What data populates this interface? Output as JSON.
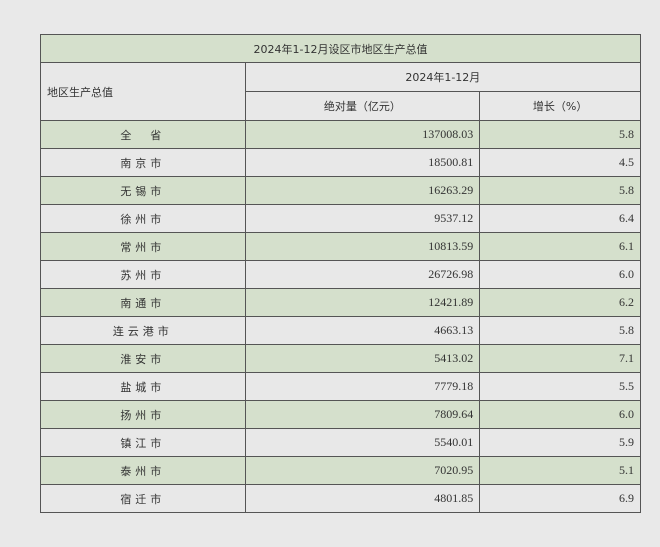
{
  "title": "2024年1-12月设区市地区生产总值",
  "header": {
    "row_label": "地区生产总值",
    "period": "2024年1-12月",
    "col_abs": "绝对量（亿元）",
    "col_growth": "增长（%）"
  },
  "rows": [
    {
      "name": "全　省",
      "value": "137008.03",
      "growth": "5.8"
    },
    {
      "name": "南京市",
      "value": "18500.81",
      "growth": "4.5"
    },
    {
      "name": "无锡市",
      "value": "16263.29",
      "growth": "5.8"
    },
    {
      "name": "徐州市",
      "value": "9537.12",
      "growth": "6.4"
    },
    {
      "name": "常州市",
      "value": "10813.59",
      "growth": "6.1"
    },
    {
      "name": "苏州市",
      "value": "26726.98",
      "growth": "6.0"
    },
    {
      "name": "南通市",
      "value": "12421.89",
      "growth": "6.2"
    },
    {
      "name": "连云港市",
      "value": "4663.13",
      "growth": "5.8"
    },
    {
      "name": "淮安市",
      "value": "5413.02",
      "growth": "7.1"
    },
    {
      "name": "盐城市",
      "value": "7779.18",
      "growth": "5.5"
    },
    {
      "name": "扬州市",
      "value": "7809.64",
      "growth": "6.0"
    },
    {
      "name": "镇江市",
      "value": "5540.01",
      "growth": "5.9"
    },
    {
      "name": "泰州市",
      "value": "7020.95",
      "growth": "5.1"
    },
    {
      "name": "宿迁市",
      "value": "4801.85",
      "growth": "6.9"
    }
  ],
  "colors": {
    "green_row": "#d5e0cc",
    "plain_row": "#e8e8e8",
    "border": "#555555"
  }
}
